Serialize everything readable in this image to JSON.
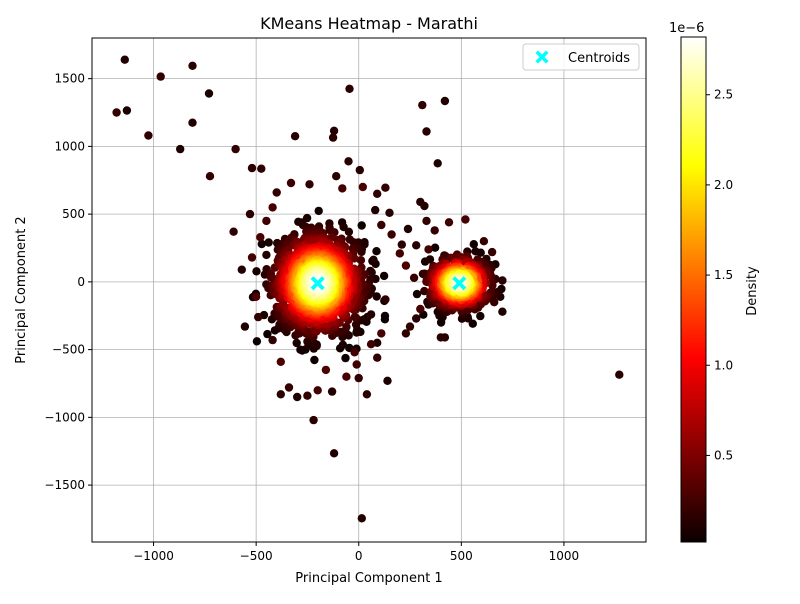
{
  "chart_data": {
    "type": "scatter",
    "title": "KMeans Heatmap - Marathi",
    "xlabel": "Principal Component 1",
    "ylabel": "Principal Component 2",
    "xlim": [
      -1300,
      1400
    ],
    "ylim": [
      -1920,
      1800
    ],
    "xticks": [
      -1000,
      -500,
      0,
      500,
      1000
    ],
    "xtick_labels": [
      "−1000",
      "−500",
      "0",
      "500",
      "1000"
    ],
    "yticks": [
      -1500,
      -1000,
      -500,
      0,
      500,
      1000,
      1500
    ],
    "ytick_labels": [
      "−1500",
      "−1000",
      "−500",
      "0",
      "500",
      "1000",
      "1500"
    ],
    "grid": true,
    "legend": {
      "label": "Centroids",
      "position": "top-right"
    },
    "colorbar": {
      "label": "Density",
      "exponent_label": "1e−6",
      "min": 0.02,
      "max": 2.82,
      "ticks": [
        0.5,
        1.0,
        1.5,
        2.0,
        2.5
      ],
      "tick_labels": [
        "0.5",
        "1.0",
        "1.5",
        "2.0",
        "2.5"
      ],
      "colormap": "hot"
    },
    "centroids": [
      {
        "x": -200,
        "y": -10,
        "color": "#00ffff"
      },
      {
        "x": 490,
        "y": -10,
        "color": "#00ffff"
      }
    ],
    "clusters": [
      {
        "cx": -200,
        "cy": -10,
        "sx": 105,
        "sy": 175,
        "count": 1500,
        "peak_density": 2.8
      },
      {
        "cx": 490,
        "cy": -10,
        "sx": 75,
        "sy": 95,
        "count": 600,
        "peak_density": 2.7
      }
    ],
    "outliers": [
      {
        "x": -1140,
        "y": 1640
      },
      {
        "x": -965,
        "y": 1515
      },
      {
        "x": -810,
        "y": 1595
      },
      {
        "x": -1180,
        "y": 1250
      },
      {
        "x": -1130,
        "y": 1265
      },
      {
        "x": -1025,
        "y": 1080
      },
      {
        "x": -810,
        "y": 1175
      },
      {
        "x": -730,
        "y": 1390
      },
      {
        "x": -870,
        "y": 980
      },
      {
        "x": -600,
        "y": 980
      },
      {
        "x": -725,
        "y": 780
      },
      {
        "x": -310,
        "y": 1075
      },
      {
        "x": -120,
        "y": 1115
      },
      {
        "x": -125,
        "y": 1065
      },
      {
        "x": -45,
        "y": 1425
      },
      {
        "x": -520,
        "y": 840
      },
      {
        "x": -475,
        "y": 835
      },
      {
        "x": -50,
        "y": 890
      },
      {
        "x": 5,
        "y": 825
      },
      {
        "x": 310,
        "y": 1305
      },
      {
        "x": 420,
        "y": 1335
      },
      {
        "x": 330,
        "y": 1110
      },
      {
        "x": 385,
        "y": 875
      },
      {
        "x": -530,
        "y": 500
      },
      {
        "x": -610,
        "y": 370
      },
      {
        "x": -570,
        "y": 90
      },
      {
        "x": -555,
        "y": -330
      },
      {
        "x": 130,
        "y": 695
      },
      {
        "x": 80,
        "y": 530
      },
      {
        "x": 150,
        "y": 510
      },
      {
        "x": 300,
        "y": 590
      },
      {
        "x": 320,
        "y": 560
      },
      {
        "x": 240,
        "y": 390
      },
      {
        "x": 210,
        "y": 275
      },
      {
        "x": 130,
        "y": -130
      },
      {
        "x": 140,
        "y": -730
      },
      {
        "x": 40,
        "y": -830
      },
      {
        "x": 0,
        "y": -710
      },
      {
        "x": -130,
        "y": -810
      },
      {
        "x": -220,
        "y": -1020
      },
      {
        "x": -120,
        "y": -1265
      },
      {
        "x": 15,
        "y": -1745
      },
      {
        "x": 1270,
        "y": -685
      },
      {
        "x": 700,
        "y": 10
      },
      {
        "x": 690,
        "y": -110
      },
      {
        "x": 700,
        "y": -220
      },
      {
        "x": 230,
        "y": -380
      },
      {
        "x": 400,
        "y": -410
      },
      {
        "x": 420,
        "y": -410
      },
      {
        "x": 330,
        "y": 450
      },
      {
        "x": 280,
        "y": 270
      },
      {
        "x": 90,
        "y": -450
      },
      {
        "x": -300,
        "y": -850
      },
      {
        "x": -250,
        "y": -840
      },
      {
        "x": -380,
        "y": -830
      },
      {
        "x": 60,
        "y": -240
      }
    ],
    "spread_points": [
      {
        "x": -400,
        "y": 660
      },
      {
        "x": -330,
        "y": 730
      },
      {
        "x": -240,
        "y": 720
      },
      {
        "x": -110,
        "y": 780
      },
      {
        "x": -80,
        "y": 690
      },
      {
        "x": 20,
        "y": 700
      },
      {
        "x": 90,
        "y": 650
      },
      {
        "x": -450,
        "y": 450
      },
      {
        "x": -420,
        "y": 550
      },
      {
        "x": -480,
        "y": 330
      },
      {
        "x": 110,
        "y": 420
      },
      {
        "x": 160,
        "y": 350
      },
      {
        "x": 200,
        "y": 210
      },
      {
        "x": 110,
        "y": -380
      },
      {
        "x": 60,
        "y": -460
      },
      {
        "x": -10,
        "y": -610
      },
      {
        "x": -60,
        "y": -700
      },
      {
        "x": -160,
        "y": -650
      },
      {
        "x": -340,
        "y": -780
      },
      {
        "x": -380,
        "y": -590
      },
      {
        "x": -420,
        "y": -430
      },
      {
        "x": -490,
        "y": -260
      },
      {
        "x": -500,
        "y": -110
      },
      {
        "x": -520,
        "y": 180
      },
      {
        "x": 250,
        "y": -330
      },
      {
        "x": 280,
        "y": -270
      },
      {
        "x": 270,
        "y": 30
      },
      {
        "x": 300,
        "y": -200
      },
      {
        "x": 340,
        "y": 240
      },
      {
        "x": 370,
        "y": 380
      },
      {
        "x": 440,
        "y": 440
      },
      {
        "x": 520,
        "y": 460
      },
      {
        "x": 610,
        "y": 300
      },
      {
        "x": 650,
        "y": 220
      },
      {
        "x": 660,
        "y": -150
      },
      {
        "x": 620,
        "y": 130
      },
      {
        "x": 230,
        "y": 120
      },
      {
        "x": 90,
        "y": -560
      },
      {
        "x": -200,
        "y": -800
      },
      {
        "x": -20,
        "y": -520
      }
    ]
  }
}
